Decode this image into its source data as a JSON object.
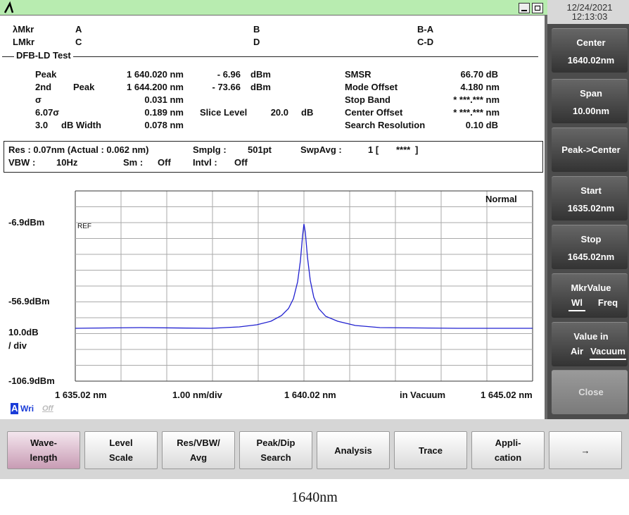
{
  "status": {
    "date": "12/24/2021",
    "time": "12:13:03"
  },
  "markers": {
    "rows": [
      [
        "λMkr",
        "A",
        "B",
        "B-A"
      ],
      [
        "LMkr",
        "C",
        "D",
        "C-D"
      ]
    ]
  },
  "test_name": "DFB-LD Test",
  "results": {
    "rows": [
      [
        "Peak",
        "1 640.020 nm",
        "- 6.96",
        "dBm",
        "SMSR",
        "66.70 dB"
      ],
      [
        "2nd",
        "Peak",
        "1 644.200 nm",
        "- 73.66",
        "dBm",
        "Mode Offset",
        "4.180 nm"
      ],
      [
        "σ",
        "0.031 nm",
        "Stop Band",
        "* ***.*** nm"
      ],
      [
        "6.07σ",
        "0.189 nm",
        "Slice Level",
        "20.0",
        "dB",
        "Center Offset",
        "* ***.*** nm"
      ],
      [
        "3.0",
        "dB Width",
        "0.078 nm",
        "Search Resolution",
        "0.10 dB"
      ]
    ]
  },
  "settings": {
    "rows": [
      [
        "Res : 0.07nm (Actual : 0.062 nm)",
        "Smplg :",
        "501pt",
        "SwpAvg :",
        "1 [",
        "****",
        "]"
      ],
      [
        "VBW :",
        "10Hz",
        "Sm :",
        "Off",
        "Intvl :",
        "Off"
      ]
    ]
  },
  "graph": {
    "mode": "Normal",
    "ref_label": "REF",
    "y_labels": [
      "-6.9dBm",
      "-56.9dBm",
      "-106.9dBm"
    ],
    "scale": [
      "10.0dB",
      "/ div"
    ],
    "x_labels": [
      "1 635.02 nm",
      "1.00 nm/div",
      "1 640.02 nm",
      "in Vacuum",
      "1 645.02 nm"
    ]
  },
  "write_status": {
    "a": "A",
    "wri": "Wri",
    "off": "Off"
  },
  "side_keys": [
    {
      "title": "Center",
      "value": "1640.02nm"
    },
    {
      "title": "Span",
      "value": "10.00nm"
    },
    {
      "title": "Peak->Center"
    },
    {
      "title": "Start",
      "value": "1635.02nm"
    },
    {
      "title": "Stop",
      "value": "1645.02nm"
    },
    {
      "title": "MkrValue",
      "options": [
        "Wl",
        "Freq"
      ]
    },
    {
      "title": "Value in",
      "options": [
        "Air",
        "Vacuum"
      ]
    },
    {
      "title": "Close"
    }
  ],
  "soft_keys": [
    [
      "Wave-",
      "length"
    ],
    [
      "Level",
      "Scale"
    ],
    [
      "Res/VBW/",
      "Avg"
    ],
    [
      "Peak/Dip",
      "Search"
    ],
    [
      "Analysis"
    ],
    [
      "Trace"
    ],
    [
      "Appli-",
      "cation"
    ],
    [
      "→"
    ]
  ],
  "caption": "1640nm"
}
